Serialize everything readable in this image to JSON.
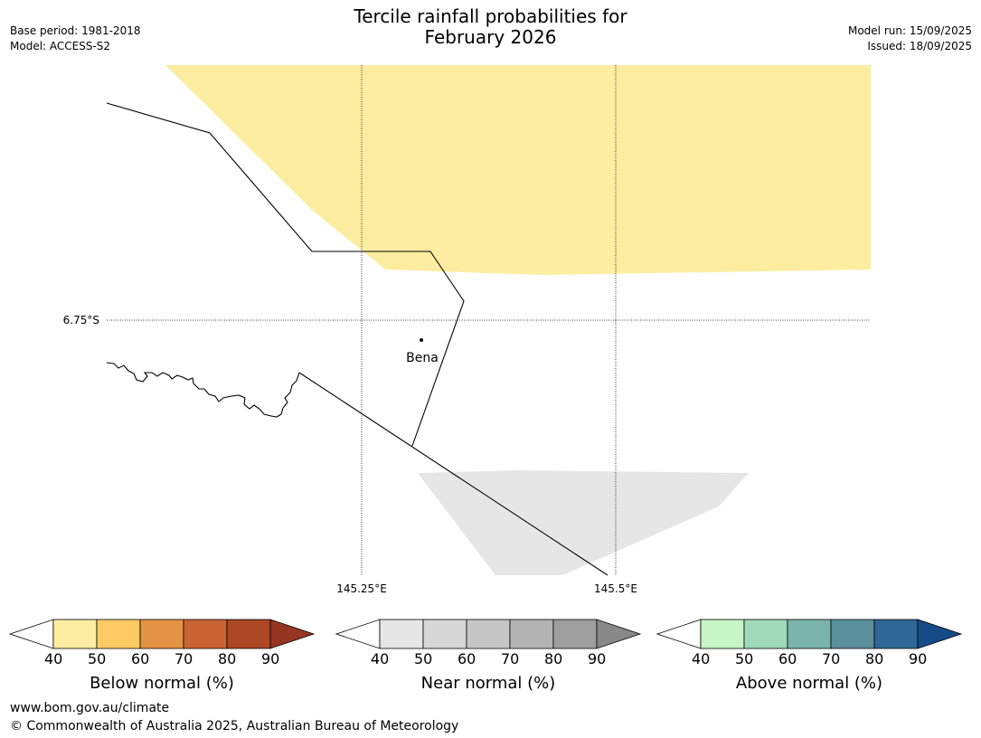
{
  "header": {
    "title_line1": "Tercile rainfall probabilities for",
    "title_line2": "February 2026",
    "base_period": "Base period: 1981-2018",
    "model": "Model: ACCESS-S2",
    "model_run": "Model run: 15/09/2025",
    "issued": "Issued: 18/09/2025"
  },
  "map": {
    "lat_label": "6.75°S",
    "lon_labels": [
      "145.25°E",
      "145.5°E"
    ],
    "place_name": "Bena",
    "regions": [
      {
        "category": "below-normal",
        "probability_band": "40-50",
        "color": "#fdeda1"
      },
      {
        "category": "near-normal",
        "probability_band": "40-50",
        "color": "#e6e6e6"
      }
    ]
  },
  "colorbars": [
    {
      "label": "Below normal (%)",
      "ticks": [
        "40",
        "50",
        "60",
        "70",
        "80",
        "90"
      ],
      "colors": [
        "#ffffff",
        "#fdeda1",
        "#fdca63",
        "#e39343",
        "#cc6332",
        "#ad4726",
        "#963522"
      ]
    },
    {
      "label": "Near normal (%)",
      "ticks": [
        "40",
        "50",
        "60",
        "70",
        "80",
        "90"
      ],
      "colors": [
        "#ffffff",
        "#e6e6e6",
        "#d7d7d7",
        "#c6c6c6",
        "#b3b3b3",
        "#9f9f9f",
        "#888888"
      ]
    },
    {
      "label": "Above normal (%)",
      "ticks": [
        "40",
        "50",
        "60",
        "70",
        "80",
        "90"
      ],
      "colors": [
        "#ffffff",
        "#c7f5c6",
        "#a1d9bb",
        "#7ab5ab",
        "#5a8f9c",
        "#2f6796",
        "#154c87"
      ]
    }
  ],
  "footer": {
    "url": "www.bom.gov.au/climate",
    "copyright": "© Commonwealth of Australia 2025, Australian Bureau of Meteorology"
  }
}
